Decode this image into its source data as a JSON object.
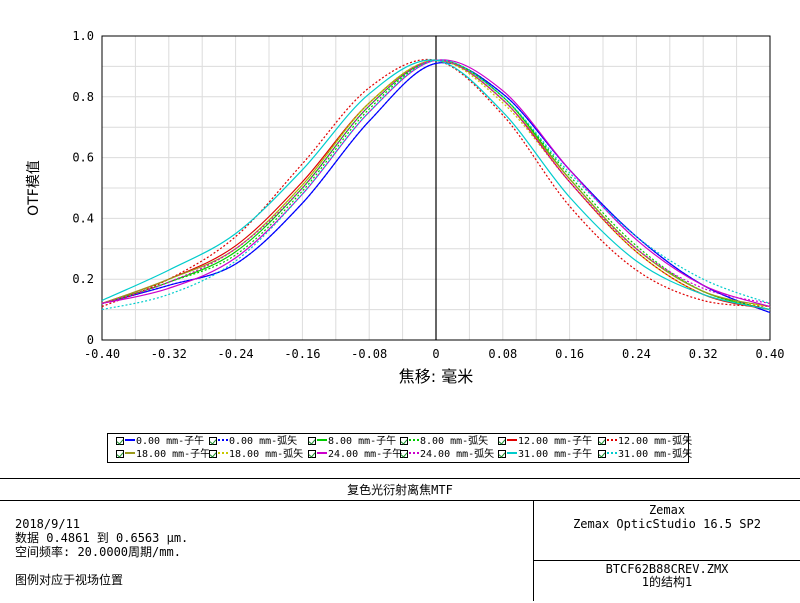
{
  "chart_data": {
    "type": "line",
    "xlabel": "焦移: 毫米",
    "ylabel": "OTF模值",
    "xlim": [
      -0.4,
      0.4
    ],
    "ylim": [
      0,
      1.0
    ],
    "x_ticks": [
      "-0.40",
      "-0.32",
      "-0.24",
      "-0.16",
      "-0.08",
      "0",
      "0.08",
      "0.16",
      "0.24",
      "0.32",
      "0.40"
    ],
    "y_ticks": [
      "0",
      "0.2",
      "0.4",
      "0.6",
      "0.8",
      "1.0"
    ],
    "grid": true,
    "x": [
      -0.4,
      -0.32,
      -0.24,
      -0.16,
      -0.08,
      0.0,
      0.08,
      0.16,
      0.24,
      0.32,
      0.4
    ],
    "series": [
      {
        "name": "0.00 mm-子午",
        "color": "#0000ff",
        "dash": "solid",
        "values": [
          0.12,
          0.18,
          0.25,
          0.45,
          0.72,
          0.91,
          0.81,
          0.56,
          0.34,
          0.18,
          0.09
        ]
      },
      {
        "name": "0.00 mm-弧矢",
        "color": "#0000ff",
        "dash": "dotted",
        "values": [
          0.12,
          0.18,
          0.25,
          0.45,
          0.72,
          0.91,
          0.81,
          0.56,
          0.34,
          0.18,
          0.09
        ]
      },
      {
        "name": "8.00 mm-子午",
        "color": "#00cc00",
        "dash": "solid",
        "values": [
          0.12,
          0.19,
          0.29,
          0.5,
          0.77,
          0.92,
          0.8,
          0.53,
          0.3,
          0.16,
          0.1
        ]
      },
      {
        "name": "8.00 mm-弧矢",
        "color": "#00cc00",
        "dash": "dotted",
        "values": [
          0.12,
          0.19,
          0.28,
          0.49,
          0.76,
          0.92,
          0.8,
          0.54,
          0.31,
          0.16,
          0.1
        ]
      },
      {
        "name": "12.00 mm-子午",
        "color": "#e00000",
        "dash": "solid",
        "values": [
          0.12,
          0.2,
          0.31,
          0.52,
          0.78,
          0.92,
          0.79,
          0.52,
          0.29,
          0.15,
          0.1
        ]
      },
      {
        "name": "12.00 mm-弧矢",
        "color": "#e00000",
        "dash": "dotted",
        "values": [
          0.11,
          0.2,
          0.34,
          0.58,
          0.83,
          0.92,
          0.74,
          0.44,
          0.23,
          0.13,
          0.11
        ]
      },
      {
        "name": "18.00 mm-子午",
        "color": "#9a9a1a",
        "dash": "solid",
        "values": [
          0.12,
          0.2,
          0.3,
          0.51,
          0.78,
          0.92,
          0.79,
          0.53,
          0.3,
          0.16,
          0.11
        ]
      },
      {
        "name": "18.00 mm-弧矢",
        "color": "#c8c800",
        "dash": "dotted",
        "values": [
          0.12,
          0.19,
          0.3,
          0.51,
          0.78,
          0.92,
          0.78,
          0.52,
          0.29,
          0.15,
          0.11
        ]
      },
      {
        "name": "24.00 mm-子午",
        "color": "#cc00cc",
        "dash": "solid",
        "values": [
          0.12,
          0.17,
          0.27,
          0.48,
          0.75,
          0.92,
          0.82,
          0.56,
          0.33,
          0.18,
          0.11
        ]
      },
      {
        "name": "24.00 mm-弧矢",
        "color": "#cc00cc",
        "dash": "dotted",
        "values": [
          0.12,
          0.19,
          0.3,
          0.5,
          0.77,
          0.92,
          0.79,
          0.52,
          0.3,
          0.17,
          0.12
        ]
      },
      {
        "name": "31.00 mm-子午",
        "color": "#00cccc",
        "dash": "solid",
        "values": [
          0.13,
          0.23,
          0.35,
          0.56,
          0.81,
          0.92,
          0.75,
          0.47,
          0.26,
          0.15,
          0.1
        ]
      },
      {
        "name": "31.00 mm-弧矢",
        "color": "#00cccc",
        "dash": "dotted",
        "values": [
          0.1,
          0.15,
          0.26,
          0.48,
          0.75,
          0.92,
          0.8,
          0.55,
          0.34,
          0.2,
          0.12
        ]
      }
    ]
  },
  "footer": {
    "title": "复色光衍射离焦MTF",
    "date": "2018/9/11",
    "data_range": "数据 0.4861 到 0.6563 μm.",
    "spatial_freq": "空间频率: 20.0000周期/mm.",
    "legend_note": "图例对应于视场位置",
    "company": "Zemax",
    "software": "Zemax OpticStudio 16.5 SP2",
    "file": "BTCF62B88CREV.ZMX",
    "config": "1的结构1"
  }
}
